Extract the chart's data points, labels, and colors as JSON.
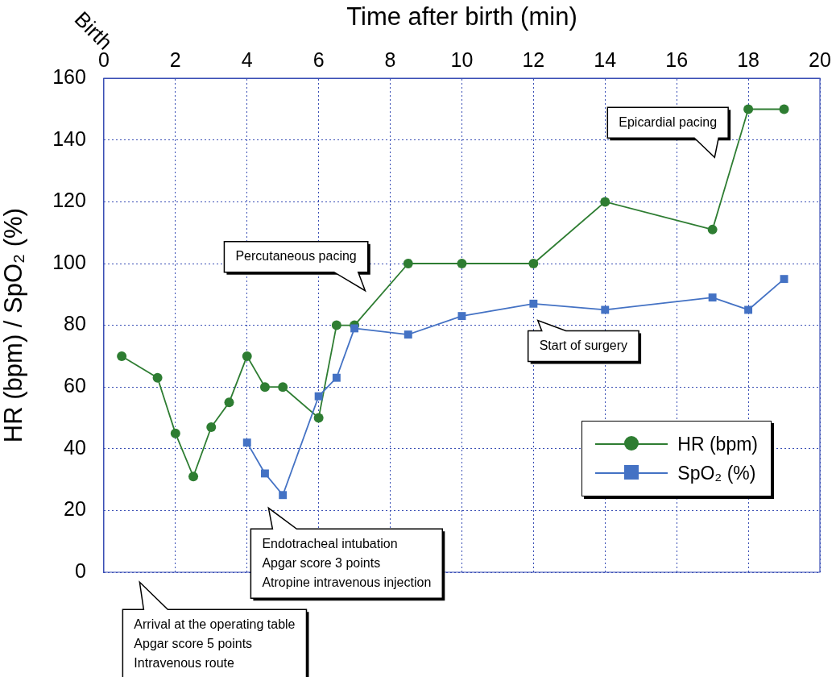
{
  "chart_data": {
    "type": "line",
    "xlabel": "Time after birth (min)",
    "ylabel": "HR (bpm) / SpO₂ (%)",
    "xlim": [
      0,
      20
    ],
    "xticks": [
      0,
      2,
      4,
      6,
      8,
      10,
      12,
      14,
      16,
      18,
      20
    ],
    "ylim": [
      0,
      160
    ],
    "yticks": [
      0,
      20,
      40,
      60,
      80,
      100,
      120,
      140,
      160
    ],
    "grid": true,
    "legend": "bottom right",
    "line_style": "solid",
    "series": [
      {
        "name": "HR (bpm)",
        "color": "#2e7d32",
        "marker": "circle",
        "x": [
          0.5,
          1.5,
          2,
          2.5,
          3,
          3.5,
          4,
          4.5,
          5,
          6,
          6.5,
          7,
          8.5,
          10,
          12,
          14,
          17,
          18,
          19
        ],
        "values": [
          70,
          63,
          45,
          31,
          47,
          55,
          70,
          60,
          60,
          50,
          80,
          80,
          100,
          100,
          100,
          120,
          111,
          150,
          150
        ]
      },
      {
        "name": "SpO₂ (%)",
        "color": "#4472c4",
        "marker": "square",
        "x": [
          4,
          4.5,
          5,
          6,
          6.5,
          7,
          8.5,
          10,
          12,
          14,
          17,
          18,
          19
        ],
        "values": [
          42,
          32,
          25,
          57,
          63,
          79,
          77,
          83,
          87,
          85,
          89,
          85,
          95
        ]
      }
    ],
    "annotations": [
      "Birth",
      "Arrival at the operating table\nApgar score 5 points\nIntravenous route",
      "Endotracheal intubation\nApgar score 3 points\nAtropine intravenous injection",
      "Percutaneous pacing",
      "Start of surgery",
      "Epicardial pacing"
    ]
  }
}
